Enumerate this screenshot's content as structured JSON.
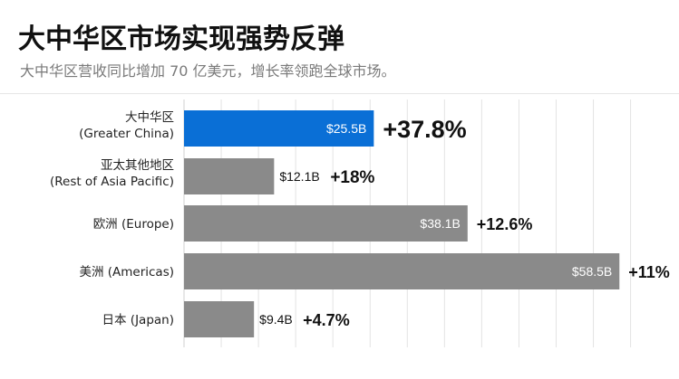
{
  "title": "大中华区市场实现强势反弹",
  "subtitle": "大中华区营收同比增加 70 亿美元，增长率领跑全球市场。",
  "colors": {
    "highlight": "#0a6fd6",
    "bar": "#8a8a8a",
    "grid": "#e3e3e3"
  },
  "chart_data": {
    "type": "bar",
    "orientation": "horizontal",
    "categories": [
      [
        "大中华区",
        "(Greater China)"
      ],
      [
        "亚太其他地区",
        "(Rest of Asia Pacific)"
      ],
      [
        "欧洲 (Europe)"
      ],
      [
        "美洲 (Americas)"
      ],
      [
        "日本 (Japan)"
      ]
    ],
    "values": [
      25.5,
      12.1,
      38.1,
      58.5,
      9.4
    ],
    "value_labels": [
      "$25.5B",
      "$12.1B",
      "$38.1B",
      "$58.5B",
      "$9.4B"
    ],
    "growth_labels": [
      "+37.8%",
      "+18%",
      "+12.6%",
      "+11%",
      "+4.7%"
    ],
    "highlight_index": 0,
    "xlim": [
      0,
      62
    ],
    "grid": true
  }
}
